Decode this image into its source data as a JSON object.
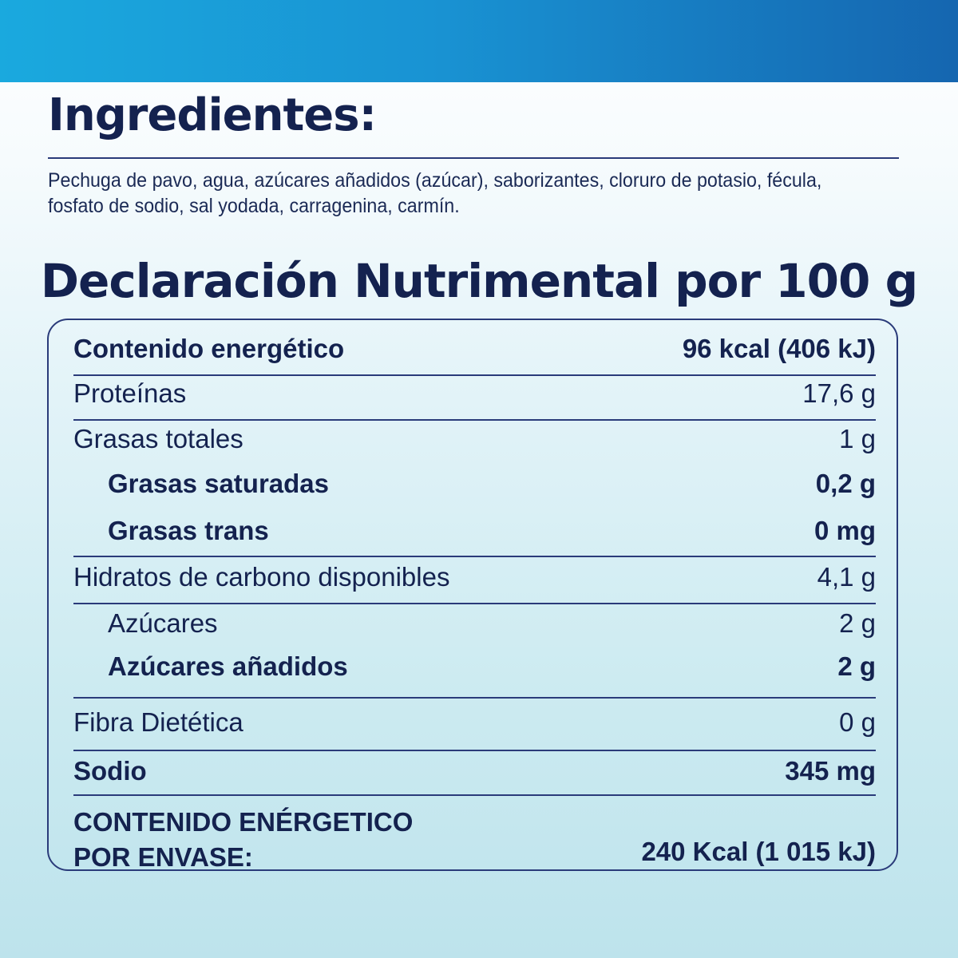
{
  "ingredients": {
    "title": "Ingredientes:",
    "text": "Pechuga de pavo, agua, azúcares añadidos (azúcar), saborizantes, cloruro de potasio, fécula, fosfato de sodio, sal yodada, carragenina, carmín."
  },
  "nutrition": {
    "title": "Declaración Nutrimental por 100 g",
    "rows": [
      {
        "label": "Contenido energético",
        "value": "96 kcal (406 kJ)"
      },
      {
        "label": "Proteínas",
        "value": "17,6 g"
      },
      {
        "label": "Grasas totales",
        "value": "1 g"
      },
      {
        "label": "Grasas saturadas",
        "value": "0,2 g"
      },
      {
        "label": "Grasas trans",
        "value": "0 mg"
      },
      {
        "label": "Hidratos de carbono disponibles",
        "value": "4,1 g"
      },
      {
        "label": "Azúcares",
        "value": "2 g"
      },
      {
        "label": "Azúcares añadidos",
        "value": "2 g"
      },
      {
        "label": "Fibra Dietética",
        "value": "0 g"
      },
      {
        "label": "Sodio",
        "value": "345 mg"
      }
    ],
    "total": {
      "label_line1": "CONTENIDO ENÉRGETICO",
      "label_line2": "POR ENVASE:",
      "value": "240 Kcal (1 015 kJ)"
    }
  },
  "colors": {
    "text": "#14224f",
    "rule": "#2a3b7a",
    "band_start": "#1aa9de",
    "band_end": "#1566b0"
  }
}
